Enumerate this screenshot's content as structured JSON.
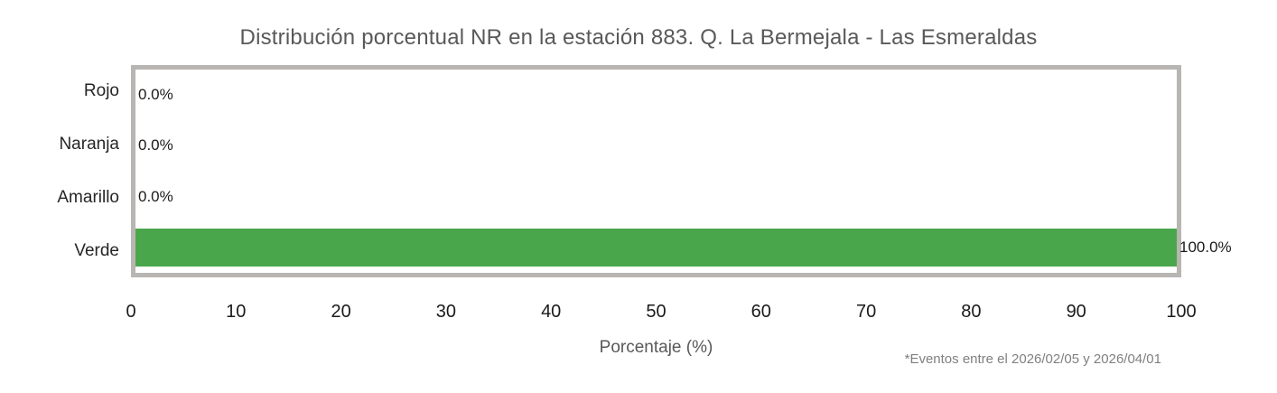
{
  "chart_data": {
    "type": "bar",
    "orientation": "horizontal",
    "title": "Distribución porcentual NR en la estación 883. Q. La Bermejala - Las Esmeraldas",
    "categories": [
      "Rojo",
      "Naranja",
      "Amarillo",
      "Verde"
    ],
    "values": [
      0.0,
      0.0,
      0.0,
      100.0
    ],
    "value_labels": [
      "0.0%",
      "0.0%",
      "0.0%",
      "100.0%"
    ],
    "bar_color": "#4aa64b",
    "frame_color": "#b8b5b2",
    "xlabel": "Porcentaje (%)",
    "xlim": [
      0,
      100
    ],
    "xticks": [
      0,
      10,
      20,
      30,
      40,
      50,
      60,
      70,
      80,
      90,
      100
    ],
    "footnote": "*Eventos entre el 2026/02/05 y 2026/04/01",
    "grid": false,
    "legend": "none"
  }
}
